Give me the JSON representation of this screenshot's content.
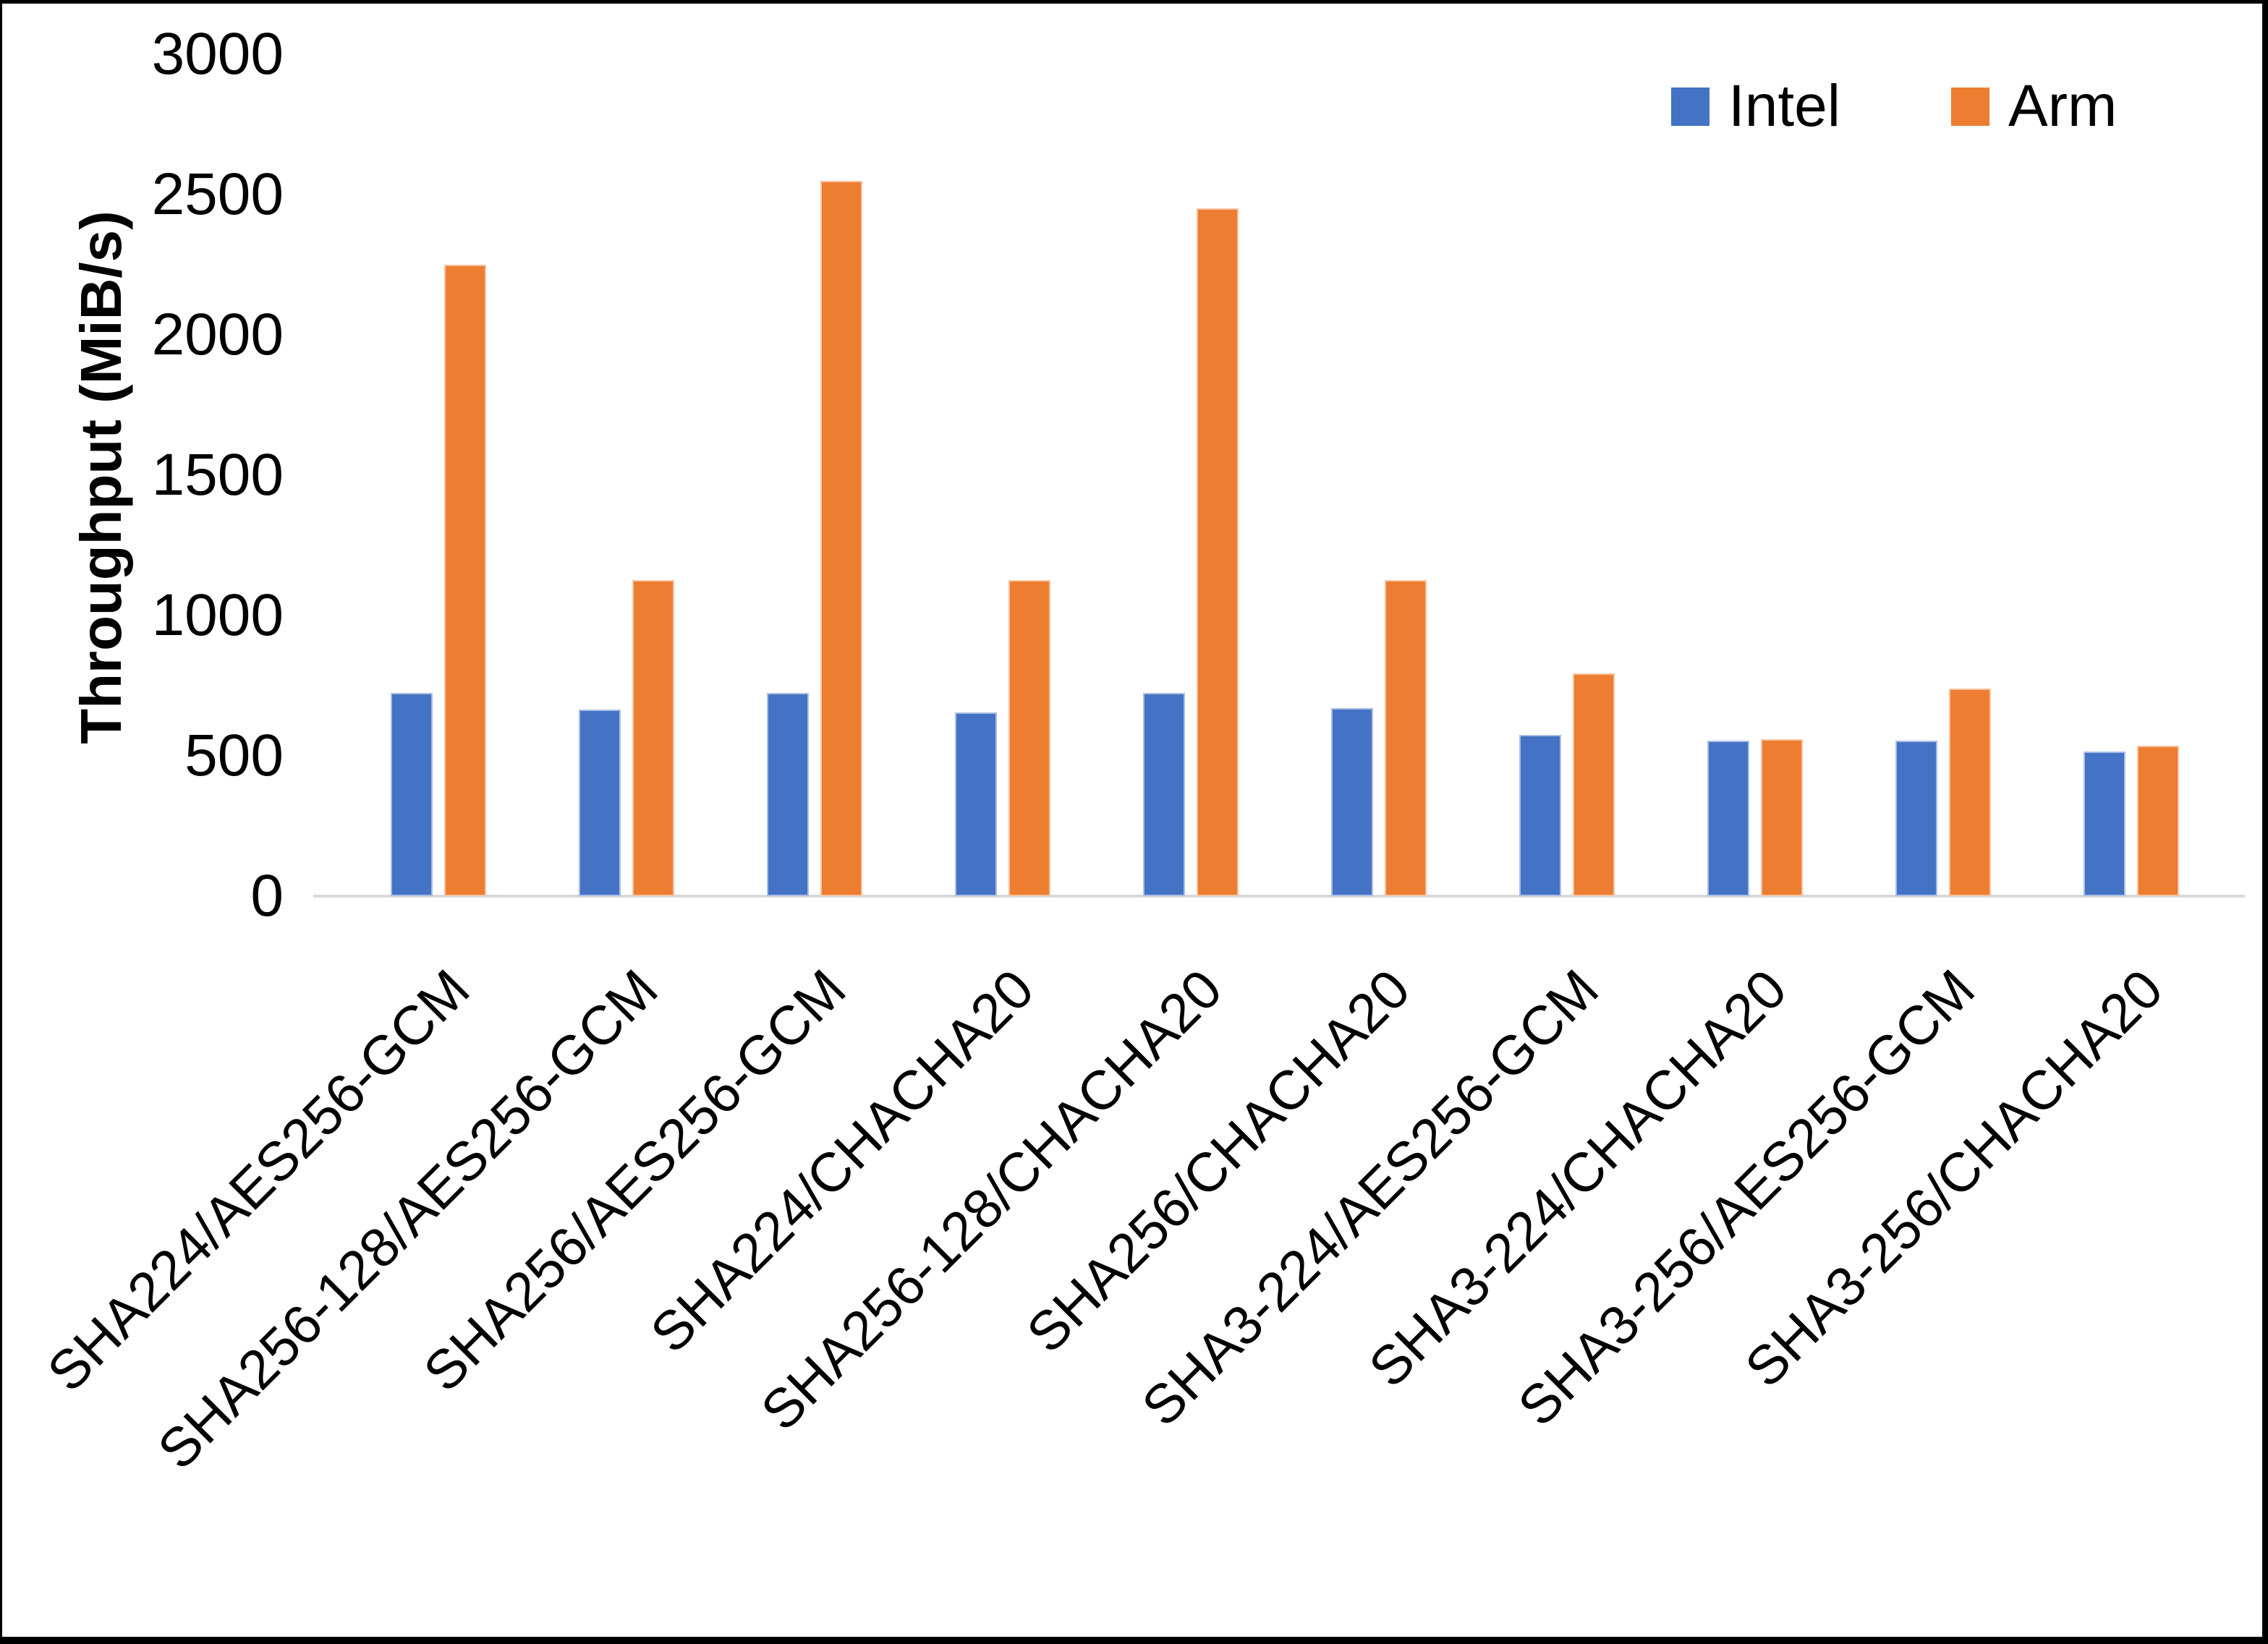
{
  "figure": {
    "background": "#ffffff",
    "border_color": "#000000",
    "axis_line_color": "#d9d9d9",
    "text_color": "#000000"
  },
  "legend": {
    "position": "top-right",
    "items": [
      {
        "label": "Intel",
        "color": "#4472C4"
      },
      {
        "label": "Arm",
        "color": "#ED7D31"
      }
    ]
  },
  "chart_data": {
    "type": "bar",
    "title": "",
    "xlabel": "",
    "ylabel": "Throughput (MiB/s)",
    "categories": [
      "SHA224/AES256-GCM",
      "SHA256-128/AES256-GCM",
      "SHA256/AES256-GCM",
      "SHA224/CHACHA20",
      "SHA256-128/CHACHA20",
      "SHA256/CHACHA20",
      "SHA3-224/AES256-GCM",
      "SHA3-224/CHACHA20",
      "SHA3-256/AES256-GCM",
      "SHA3-256/CHACHA20"
    ],
    "series": [
      {
        "name": "Intel",
        "color": "#4472C4",
        "values": [
          725,
          665,
          725,
          655,
          725,
          670,
          575,
          555,
          555,
          515
        ]
      },
      {
        "name": "Arm",
        "color": "#ED7D31",
        "values": [
          2250,
          1125,
          2550,
          1125,
          2450,
          1125,
          795,
          560,
          740,
          535
        ]
      }
    ],
    "ylim": [
      0,
      3000
    ],
    "yticks": [
      0,
      500,
      1000,
      1500,
      2000,
      2500,
      3000
    ],
    "grid": false,
    "legend_position": "top-right"
  }
}
